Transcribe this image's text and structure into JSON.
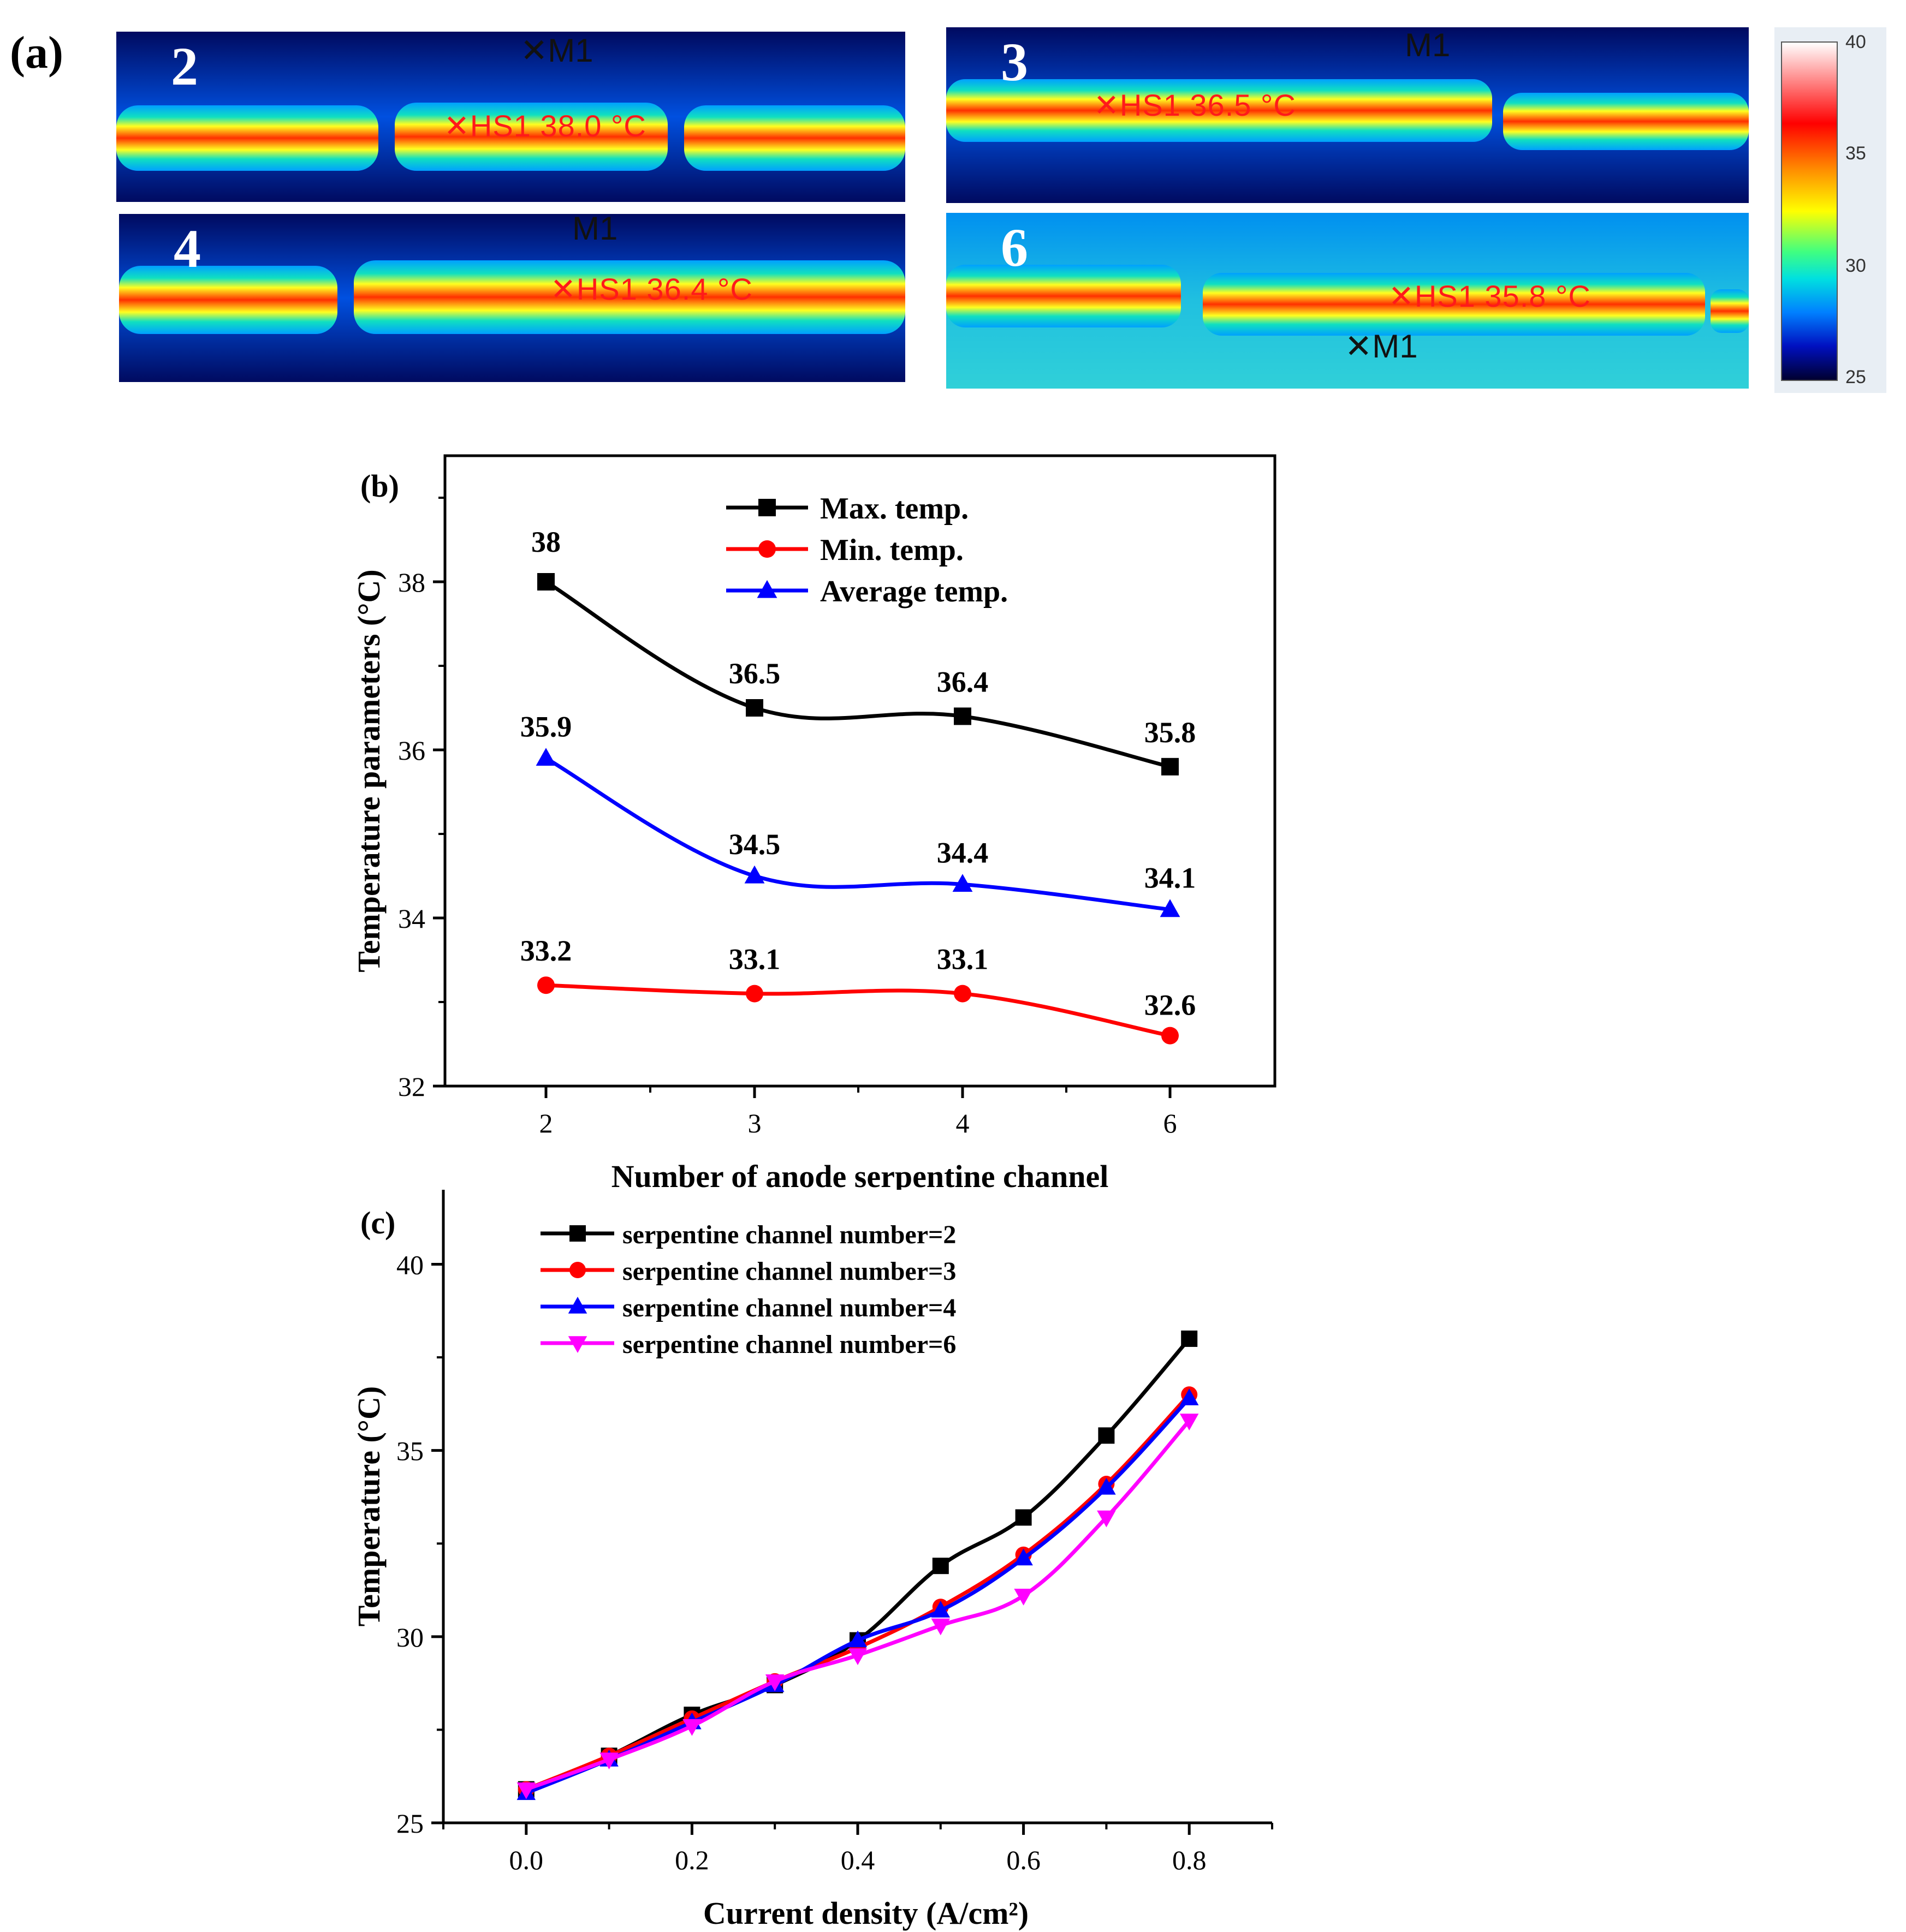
{
  "panel_a": {
    "label": "(a)",
    "images": [
      {
        "channel": "2",
        "hotspot": "HS1 38.0 °C",
        "marker": "M1"
      },
      {
        "channel": "3",
        "hotspot": "HS1 36.5 °C",
        "marker": "M1"
      },
      {
        "channel": "4",
        "hotspot": "HS1 36.4 °C",
        "marker": "M1"
      },
      {
        "channel": "6",
        "hotspot": "HS1 35.8 °C",
        "marker": "M1"
      }
    ],
    "colorbar": {
      "ticks": [
        "40",
        "35",
        "30",
        "25"
      ],
      "min": 25,
      "max": 40
    }
  },
  "chart_data": [
    {
      "type": "line",
      "panel_label": "(b)",
      "xlabel": "Number of anode serpentine channel",
      "ylabel": "Temperature parameters (°C)",
      "categories": [
        "2",
        "3",
        "4",
        "6"
      ],
      "ylim": [
        32,
        39.5
      ],
      "yticks": [
        32,
        34,
        36,
        38
      ],
      "legend_position": "top-center",
      "series": [
        {
          "name": "Max. temp.",
          "color": "#000000",
          "marker": "square",
          "values": [
            38,
            36.5,
            36.4,
            35.8
          ],
          "labels": [
            "38",
            "36.5",
            "36.4",
            "35.8"
          ]
        },
        {
          "name": "Min. temp.",
          "color": "#ff0000",
          "marker": "circle",
          "values": [
            33.2,
            33.1,
            33.1,
            32.6
          ],
          "labels": [
            "33.2",
            "33.1",
            "33.1",
            "32.6"
          ]
        },
        {
          "name": "Average temp.",
          "color": "#0000ff",
          "marker": "triangle-up",
          "values": [
            35.9,
            34.5,
            34.4,
            34.1
          ],
          "labels": [
            "35.9",
            "34.5",
            "34.4",
            "34.1"
          ]
        }
      ]
    },
    {
      "type": "line",
      "panel_label": "(c)",
      "xlabel": "Current density (A/cm²)",
      "ylabel": "Temperature (°C)",
      "xlim": [
        -0.1,
        0.9
      ],
      "ylim": [
        25,
        42
      ],
      "xticks": [
        0.0,
        0.2,
        0.4,
        0.6,
        0.8
      ],
      "xtick_labels": [
        "0.0",
        "0.2",
        "0.4",
        "0.6",
        "0.8"
      ],
      "yticks": [
        25,
        30,
        35,
        40
      ],
      "legend_position": "top-left",
      "x": [
        0.0,
        0.1,
        0.2,
        0.3,
        0.4,
        0.5,
        0.6,
        0.7,
        0.8
      ],
      "series": [
        {
          "name": "serpentine channel number=2",
          "color": "#000000",
          "marker": "square",
          "values": [
            25.9,
            26.8,
            27.9,
            28.7,
            29.9,
            31.9,
            33.2,
            35.4,
            38.0
          ]
        },
        {
          "name": "serpentine channel number=3",
          "color": "#ff0000",
          "marker": "circle",
          "values": [
            25.9,
            26.8,
            27.8,
            28.8,
            29.7,
            30.8,
            32.2,
            34.1,
            36.5
          ]
        },
        {
          "name": "serpentine channel number=4",
          "color": "#0000ff",
          "marker": "triangle-up",
          "values": [
            25.8,
            26.7,
            27.7,
            28.7,
            29.9,
            30.7,
            32.1,
            34.0,
            36.4
          ]
        },
        {
          "name": "serpentine channel number=6",
          "color": "#ff00ff",
          "marker": "triangle-down",
          "values": [
            25.9,
            26.7,
            27.6,
            28.8,
            29.5,
            30.3,
            31.1,
            33.2,
            35.8
          ]
        }
      ]
    }
  ]
}
